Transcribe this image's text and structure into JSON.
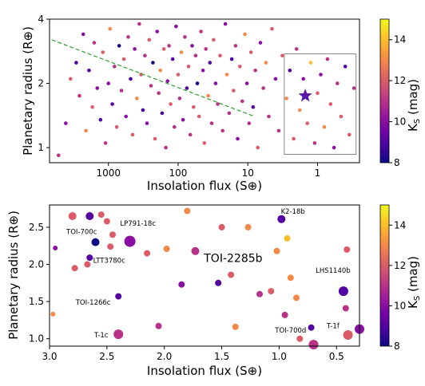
{
  "colors": {
    "cmap": [
      "#0d0887",
      "#46039f",
      "#7201a8",
      "#9c179e",
      "#bd3786",
      "#d8576b",
      "#ed7953",
      "#fb9f3a",
      "#fdca26",
      "#f0f921"
    ],
    "box": "#888888",
    "trend_line": "#2ca02c",
    "star": "#5a18a8"
  },
  "chart_data": [
    {
      "type": "scatter",
      "xlabel": "Insolation flux (S⊕)",
      "ylabel": "Planetary radius (R⊕)",
      "xscale": "log",
      "xreversed": true,
      "xlim": [
        7000,
        0.25
      ],
      "ylim": [
        0.85,
        4.0
      ],
      "yscale": "log",
      "xticks": [
        {
          "v": 1000,
          "label": "1000"
        },
        {
          "v": 100,
          "label": "100"
        },
        {
          "v": 10,
          "label": "10"
        },
        {
          "v": 1,
          "label": "1"
        }
      ],
      "yticks": [
        {
          "v": 1,
          "label": "1"
        },
        {
          "v": 2,
          "label": "2"
        },
        {
          "v": 4,
          "label": "4"
        }
      ],
      "colorbar": {
        "label": "KS (mag)",
        "range": [
          8,
          15
        ],
        "ticks": [
          "8",
          "10",
          "12",
          "14"
        ]
      },
      "box": {
        "x": [
          3,
          0.28
        ],
        "y": [
          0.93,
          2.75
        ]
      },
      "trend_line": {
        "x": [
          6500,
          8
        ],
        "y": [
          3.2,
          1.4
        ]
      },
      "highlight": {
        "x": 1.5,
        "y": 1.75,
        "marker": "star"
      },
      "points": [
        {
          "x": 5200,
          "y": 0.92,
          "k": 11
        },
        {
          "x": 4100,
          "y": 1.3,
          "k": 10
        },
        {
          "x": 3500,
          "y": 2.1,
          "k": 12
        },
        {
          "x": 2900,
          "y": 2.5,
          "k": 9
        },
        {
          "x": 2600,
          "y": 1.75,
          "k": 11
        },
        {
          "x": 2300,
          "y": 3.4,
          "k": 10
        },
        {
          "x": 2100,
          "y": 1.2,
          "k": 13
        },
        {
          "x": 1900,
          "y": 2.3,
          "k": 9
        },
        {
          "x": 1700,
          "y": 1.55,
          "k": 12
        },
        {
          "x": 1600,
          "y": 3.1,
          "k": 11
        },
        {
          "x": 1450,
          "y": 1.9,
          "k": 10
        },
        {
          "x": 1300,
          "y": 1.35,
          "k": 9
        },
        {
          "x": 1200,
          "y": 2.8,
          "k": 12
        },
        {
          "x": 1100,
          "y": 1.05,
          "k": 11
        },
        {
          "x": 1000,
          "y": 2.0,
          "k": 10
        },
        {
          "x": 950,
          "y": 3.6,
          "k": 13
        },
        {
          "x": 880,
          "y": 1.6,
          "k": 9
        },
        {
          "x": 820,
          "y": 2.4,
          "k": 11
        },
        {
          "x": 760,
          "y": 1.25,
          "k": 12
        },
        {
          "x": 700,
          "y": 3.0,
          "k": 8
        },
        {
          "x": 650,
          "y": 1.85,
          "k": 11
        },
        {
          "x": 600,
          "y": 2.6,
          "k": 12
        },
        {
          "x": 560,
          "y": 1.4,
          "k": 10
        },
        {
          "x": 520,
          "y": 3.3,
          "k": 11
        },
        {
          "x": 480,
          "y": 2.1,
          "k": 9
        },
        {
          "x": 450,
          "y": 1.15,
          "k": 12
        },
        {
          "x": 420,
          "y": 2.9,
          "k": 10
        },
        {
          "x": 390,
          "y": 1.7,
          "k": 13
        },
        {
          "x": 360,
          "y": 3.8,
          "k": 11
        },
        {
          "x": 340,
          "y": 2.2,
          "k": 12
        },
        {
          "x": 320,
          "y": 1.5,
          "k": 9
        },
        {
          "x": 300,
          "y": 2.7,
          "k": 11
        },
        {
          "x": 280,
          "y": 1.3,
          "k": 10
        },
        {
          "x": 260,
          "y": 3.2,
          "k": 12
        },
        {
          "x": 245,
          "y": 1.95,
          "k": 11
        },
        {
          "x": 230,
          "y": 2.5,
          "k": 8
        },
        {
          "x": 215,
          "y": 1.1,
          "k": 12
        },
        {
          "x": 200,
          "y": 3.5,
          "k": 10
        },
        {
          "x": 190,
          "y": 1.8,
          "k": 11
        },
        {
          "x": 180,
          "y": 2.3,
          "k": 13
        },
        {
          "x": 170,
          "y": 1.45,
          "k": 9
        },
        {
          "x": 160,
          "y": 2.9,
          "k": 12
        },
        {
          "x": 150,
          "y": 1.0,
          "k": 11
        },
        {
          "x": 142,
          "y": 2.05,
          "k": 10
        },
        {
          "x": 135,
          "y": 3.0,
          "k": 11
        },
        {
          "x": 128,
          "y": 1.6,
          "k": 12
        },
        {
          "x": 120,
          "y": 2.6,
          "k": 9
        },
        {
          "x": 113,
          "y": 1.25,
          "k": 11
        },
        {
          "x": 107,
          "y": 3.7,
          "k": 10
        },
        {
          "x": 100,
          "y": 2.2,
          "k": 12
        },
        {
          "x": 95,
          "y": 1.7,
          "k": 11
        },
        {
          "x": 90,
          "y": 2.8,
          "k": 13
        },
        {
          "x": 85,
          "y": 1.35,
          "k": 10
        },
        {
          "x": 80,
          "y": 3.3,
          "k": 11
        },
        {
          "x": 75,
          "y": 1.9,
          "k": 9
        },
        {
          "x": 71,
          "y": 2.4,
          "k": 12
        },
        {
          "x": 67,
          "y": 1.15,
          "k": 11
        },
        {
          "x": 63,
          "y": 3.0,
          "k": 10
        },
        {
          "x": 60,
          "y": 1.55,
          "k": 12
        },
        {
          "x": 56,
          "y": 2.7,
          "k": 11
        },
        {
          "x": 53,
          "y": 2.0,
          "k": 8
        },
        {
          "x": 50,
          "y": 1.4,
          "k": 12
        },
        {
          "x": 47,
          "y": 3.5,
          "k": 11
        },
        {
          "x": 44,
          "y": 2.3,
          "k": 10
        },
        {
          "x": 42,
          "y": 1.05,
          "k": 12
        },
        {
          "x": 40,
          "y": 2.9,
          "k": 11
        },
        {
          "x": 37,
          "y": 1.75,
          "k": 13
        },
        {
          "x": 35,
          "y": 2.5,
          "k": 9
        },
        {
          "x": 33,
          "y": 1.3,
          "k": 11
        },
        {
          "x": 31,
          "y": 3.2,
          "k": 12
        },
        {
          "x": 29,
          "y": 2.0,
          "k": 10
        },
        {
          "x": 27,
          "y": 1.6,
          "k": 11
        },
        {
          "x": 25,
          "y": 2.7,
          "k": 12
        },
        {
          "x": 23,
          "y": 1.2,
          "k": 11
        },
        {
          "x": 21,
          "y": 3.8,
          "k": 10
        },
        {
          "x": 20,
          "y": 2.2,
          "k": 13
        },
        {
          "x": 18.5,
          "y": 1.45,
          "k": 11
        },
        {
          "x": 17,
          "y": 2.6,
          "k": 9
        },
        {
          "x": 16,
          "y": 1.85,
          "k": 12
        },
        {
          "x": 15,
          "y": 3.0,
          "k": 11
        },
        {
          "x": 14,
          "y": 1.1,
          "k": 10
        },
        {
          "x": 13,
          "y": 2.4,
          "k": 12
        },
        {
          "x": 12,
          "y": 1.65,
          "k": 11
        },
        {
          "x": 11,
          "y": 3.4,
          "k": 13
        },
        {
          "x": 10.3,
          "y": 2.0,
          "k": 10
        },
        {
          "x": 9.6,
          "y": 1.3,
          "k": 11
        },
        {
          "x": 9.0,
          "y": 2.8,
          "k": 12
        },
        {
          "x": 8.4,
          "y": 1.55,
          "k": 9
        },
        {
          "x": 7.8,
          "y": 2.3,
          "k": 11
        },
        {
          "x": 7.2,
          "y": 1.0,
          "k": 12
        },
        {
          "x": 6.6,
          "y": 3.1,
          "k": 10
        },
        {
          "x": 6.0,
          "y": 1.9,
          "k": 11
        },
        {
          "x": 5.5,
          "y": 2.5,
          "k": 13
        },
        {
          "x": 5.0,
          "y": 1.4,
          "k": 11
        },
        {
          "x": 4.5,
          "y": 3.6,
          "k": 12
        },
        {
          "x": 4.0,
          "y": 2.1,
          "k": 10
        },
        {
          "x": 3.6,
          "y": 1.2,
          "k": 11
        },
        {
          "x": 3.2,
          "y": 2.7,
          "k": 12
        },
        {
          "x": 2.8,
          "y": 1.7,
          "k": 13
        },
        {
          "x": 2.5,
          "y": 2.3,
          "k": 9
        },
        {
          "x": 2.2,
          "y": 1.1,
          "k": 12
        },
        {
          "x": 2.0,
          "y": 2.9,
          "k": 11
        },
        {
          "x": 1.8,
          "y": 1.5,
          "k": 13
        },
        {
          "x": 1.6,
          "y": 2.1,
          "k": 10
        },
        {
          "x": 1.4,
          "y": 1.3,
          "k": 12
        },
        {
          "x": 1.25,
          "y": 2.5,
          "k": 14
        },
        {
          "x": 1.1,
          "y": 1.05,
          "k": 11
        },
        {
          "x": 1.0,
          "y": 1.8,
          "k": 12
        },
        {
          "x": 0.9,
          "y": 2.2,
          "k": 10
        },
        {
          "x": 0.8,
          "y": 1.25,
          "k": 13
        },
        {
          "x": 0.72,
          "y": 2.6,
          "k": 11
        },
        {
          "x": 0.65,
          "y": 1.6,
          "k": 12
        },
        {
          "x": 0.58,
          "y": 1.0,
          "k": 10
        },
        {
          "x": 0.52,
          "y": 2.0,
          "k": 11
        },
        {
          "x": 0.46,
          "y": 1.4,
          "k": 12
        },
        {
          "x": 0.4,
          "y": 2.4,
          "k": 9
        },
        {
          "x": 0.35,
          "y": 1.15,
          "k": 12
        },
        {
          "x": 0.3,
          "y": 1.9,
          "k": 11
        }
      ]
    },
    {
      "type": "scatter",
      "xlabel": "Insolation flux (S⊕)",
      "ylabel": "Planetary radius (R⊕)",
      "xreversed": true,
      "xlim": [
        3.0,
        0.3
      ],
      "ylim": [
        0.9,
        2.8
      ],
      "xticks": [
        {
          "v": 3.0,
          "label": "3.0"
        },
        {
          "v": 2.5,
          "label": "2.5"
        },
        {
          "v": 2.0,
          "label": "2.0"
        },
        {
          "v": 1.5,
          "label": "1.5"
        },
        {
          "v": 1.0,
          "label": "1.0"
        },
        {
          "v": 0.5,
          "label": "0.5"
        }
      ],
      "yticks": [
        {
          "v": 1.0,
          "label": "1.0"
        },
        {
          "v": 1.5,
          "label": "1.5"
        },
        {
          "v": 2.0,
          "label": "2.0"
        },
        {
          "v": 2.5,
          "label": "2.5"
        }
      ],
      "colorbar": {
        "label": "KS (mag)",
        "range": [
          8,
          15
        ],
        "ticks": [
          "8",
          "10",
          "12",
          "14"
        ]
      },
      "points": [
        {
          "x": 2.95,
          "y": 2.22,
          "k": 10,
          "s": 3
        },
        {
          "x": 2.97,
          "y": 1.33,
          "k": 13,
          "s": 3
        },
        {
          "x": 2.8,
          "y": 2.65,
          "k": 12,
          "s": 5
        },
        {
          "x": 2.78,
          "y": 1.95,
          "k": 12,
          "s": 4
        },
        {
          "x": 2.65,
          "y": 2.65,
          "k": 9,
          "s": 5
        },
        {
          "x": 2.6,
          "y": 2.3,
          "k": 8,
          "s": 5
        },
        {
          "x": 2.65,
          "y": 2.09,
          "k": 9,
          "s": 4
        },
        {
          "x": 2.67,
          "y": 2.0,
          "k": 12,
          "s": 4
        },
        {
          "x": 2.55,
          "y": 2.67,
          "k": 12,
          "s": 4
        },
        {
          "x": 2.5,
          "y": 2.58,
          "k": 12,
          "s": 4
        },
        {
          "x": 2.45,
          "y": 2.4,
          "k": 12,
          "s": 4
        },
        {
          "x": 2.47,
          "y": 2.24,
          "k": 12,
          "s": 4
        },
        {
          "x": 2.3,
          "y": 2.31,
          "k": 10,
          "s": 7
        },
        {
          "x": 2.4,
          "y": 1.57,
          "k": 9,
          "s": 4
        },
        {
          "x": 2.15,
          "y": 2.15,
          "k": 12,
          "s": 4
        },
        {
          "x": 2.4,
          "y": 1.06,
          "k": 11,
          "s": 6
        },
        {
          "x": 2.05,
          "y": 1.17,
          "k": 11,
          "s": 4
        },
        {
          "x": 1.98,
          "y": 2.21,
          "k": 13,
          "s": 4
        },
        {
          "x": 1.8,
          "y": 2.72,
          "k": 13,
          "s": 4
        },
        {
          "x": 1.85,
          "y": 1.73,
          "k": 10,
          "s": 4
        },
        {
          "x": 1.73,
          "y": 2.18,
          "k": 11,
          "s": 5
        },
        {
          "x": 1.53,
          "y": 1.75,
          "k": 9,
          "s": 4
        },
        {
          "x": 1.5,
          "y": 2.5,
          "k": 12,
          "s": 4
        },
        {
          "x": 1.42,
          "y": 1.86,
          "k": 12,
          "s": 4
        },
        {
          "x": 1.38,
          "y": 1.16,
          "k": 13,
          "s": 4
        },
        {
          "x": 1.27,
          "y": 2.5,
          "k": 13,
          "s": 4
        },
        {
          "x": 1.17,
          "y": 1.6,
          "k": 11,
          "s": 4
        },
        {
          "x": 1.07,
          "y": 1.64,
          "k": 12,
          "s": 4
        },
        {
          "x": 1.02,
          "y": 2.18,
          "k": 13,
          "s": 4
        },
        {
          "x": 0.98,
          "y": 2.61,
          "k": 9,
          "s": 5
        },
        {
          "x": 0.93,
          "y": 2.35,
          "k": 14,
          "s": 4
        },
        {
          "x": 0.9,
          "y": 1.82,
          "k": 13,
          "s": 4
        },
        {
          "x": 0.85,
          "y": 1.55,
          "k": 13,
          "s": 4
        },
        {
          "x": 0.82,
          "y": 1.0,
          "k": 12,
          "s": 4
        },
        {
          "x": 0.72,
          "y": 1.15,
          "k": 9,
          "s": 4
        },
        {
          "x": 0.7,
          "y": 0.92,
          "k": 11,
          "s": 6
        },
        {
          "x": 0.44,
          "y": 1.64,
          "k": 9,
          "s": 6
        },
        {
          "x": 0.42,
          "y": 1.41,
          "k": 11,
          "s": 4
        },
        {
          "x": 0.41,
          "y": 2.2,
          "k": 12,
          "s": 4
        },
        {
          "x": 0.4,
          "y": 1.05,
          "k": 12,
          "s": 6
        },
        {
          "x": 0.3,
          "y": 1.13,
          "k": 10,
          "s": 6
        },
        {
          "x": 0.95,
          "y": 1.32,
          "k": 11,
          "s": 4
        }
      ],
      "annotations": [
        {
          "text": "K2-18b",
          "x": 0.88,
          "y": 2.68
        },
        {
          "text": "LP791-18c",
          "x": 2.23,
          "y": 2.52
        },
        {
          "text": "TOI-700c",
          "x": 2.72,
          "y": 2.41
        },
        {
          "text": "LTT3780c",
          "x": 2.48,
          "y": 2.02
        },
        {
          "text": "TOI-2285b",
          "x": 1.4,
          "y": 2.03,
          "big": true
        },
        {
          "text": "LHS1140b",
          "x": 0.53,
          "y": 1.89
        },
        {
          "text": "TOI-1266c",
          "x": 2.62,
          "y": 1.46
        },
        {
          "text": "TOI-700d",
          "x": 0.9,
          "y": 1.08
        },
        {
          "text": "T-1c",
          "x": 2.55,
          "y": 1.02
        },
        {
          "text": "T-1f",
          "x": 0.53,
          "y": 1.14
        }
      ]
    }
  ]
}
